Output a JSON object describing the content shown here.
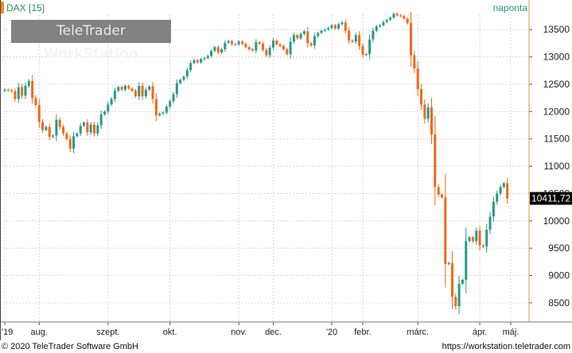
{
  "header": {
    "symbol": "DAX [15]",
    "period": "naponta",
    "watermark_brand": "TeleTrader",
    "watermark_product": "WorkStation"
  },
  "footer": {
    "copyright": "© 2020 TeleTrader Software GmbH",
    "url": "https://workstation.teletrader.com"
  },
  "colors": {
    "up": "#2a9a86",
    "down": "#ee6a1a",
    "grid": "#d8d8d8",
    "axis_text": "#222222",
    "symbol_text": "#2a8a78",
    "last_price_bg": "#000000"
  },
  "chart_data": {
    "type": "candlestick",
    "y_axis": {
      "position": "right",
      "ylim": [
        8150,
        13780
      ],
      "ticks": [
        8500,
        9000,
        9500,
        10000,
        10500,
        11000,
        11500,
        12000,
        12500,
        13000,
        13500
      ]
    },
    "x_axis": {
      "labels": [
        "'19",
        "aug.",
        "szept.",
        "okt.",
        "nov.",
        "dec.",
        "'20",
        "febr.",
        "márc.",
        "ápr.",
        "máj."
      ]
    },
    "last_price": {
      "value": 10411.72,
      "label": "10411,72"
    },
    "grid": true,
    "series": [
      {
        "name": "DAX",
        "points": [
          {
            "label": "'19",
            "value": 12400
          },
          {
            "value": 12390
          },
          {
            "value": 12370
          },
          {
            "value": 12230
          },
          {
            "value": 12450
          },
          {
            "value": 12290
          },
          {
            "value": 12470
          },
          {
            "value": 12560
          },
          {
            "value": 12250
          },
          {
            "value": 12120
          },
          {
            "label": "aug.",
            "value": 11810
          },
          {
            "value": 11660
          },
          {
            "value": 11720
          },
          {
            "value": 11540
          },
          {
            "value": 11560
          },
          {
            "value": 11850
          },
          {
            "value": 11720
          },
          {
            "value": 11600
          },
          {
            "value": 11500
          },
          {
            "value": 11320
          },
          {
            "value": 11550
          },
          {
            "value": 11600
          },
          {
            "value": 11740
          },
          {
            "value": 11800
          },
          {
            "value": 11620
          },
          {
            "value": 11760
          },
          {
            "value": 11600
          },
          {
            "value": 11750
          },
          {
            "value": 11950
          },
          {
            "value": 12000
          },
          {
            "label": "szept.",
            "value": 12130
          },
          {
            "value": 12230
          },
          {
            "value": 12380
          },
          {
            "value": 12450
          },
          {
            "value": 12400
          },
          {
            "value": 12470
          },
          {
            "value": 12420
          },
          {
            "value": 12380
          },
          {
            "value": 12280
          },
          {
            "value": 12470
          },
          {
            "value": 12280
          },
          {
            "value": 12400
          },
          {
            "value": 12460
          },
          {
            "value": 12230
          },
          {
            "value": 11930
          },
          {
            "value": 11960
          },
          {
            "value": 11980
          },
          {
            "value": 12090
          },
          {
            "label": "okt.",
            "value": 12190
          },
          {
            "value": 12320
          },
          {
            "value": 12520
          },
          {
            "value": 12580
          },
          {
            "value": 12640
          },
          {
            "value": 12760
          },
          {
            "value": 12890
          },
          {
            "value": 12940
          },
          {
            "value": 12900
          },
          {
            "value": 12960
          },
          {
            "value": 12980
          },
          {
            "value": 13020
          },
          {
            "value": 13110
          },
          {
            "value": 13180
          },
          {
            "value": 13080
          },
          {
            "value": 13140
          },
          {
            "value": 13260
          },
          {
            "value": 13290
          },
          {
            "value": 13230
          },
          {
            "value": 13230
          },
          {
            "label": "nov.",
            "value": 13280
          },
          {
            "value": 13240
          },
          {
            "value": 13180
          },
          {
            "value": 13140
          },
          {
            "value": 13120
          },
          {
            "value": 13270
          },
          {
            "value": 13240
          },
          {
            "value": 13130
          },
          {
            "value": 13030
          },
          {
            "value": 13170
          },
          {
            "label": "dec.",
            "value": 13300
          },
          {
            "value": 13230
          },
          {
            "value": 13200
          },
          {
            "value": 13140
          },
          {
            "value": 13050
          },
          {
            "value": 13280
          },
          {
            "value": 13400
          },
          {
            "value": 13340
          },
          {
            "value": 13420
          },
          {
            "value": 13470
          },
          {
            "value": 13250
          },
          {
            "value": 13210
          },
          {
            "value": 13380
          },
          {
            "value": 13440
          },
          {
            "value": 13480
          },
          {
            "value": 13500
          },
          {
            "value": 13530
          },
          {
            "label": "'20",
            "value": 13580
          },
          {
            "value": 13520
          },
          {
            "value": 13600
          },
          {
            "value": 13630
          },
          {
            "value": 13480
          },
          {
            "value": 13300
          },
          {
            "value": 13280
          },
          {
            "value": 13400
          },
          {
            "value": 13200
          },
          {
            "label": "febr.",
            "value": 13040
          },
          {
            "value": 13050
          },
          {
            "value": 13320
          },
          {
            "value": 13480
          },
          {
            "value": 13560
          },
          {
            "value": 13580
          },
          {
            "value": 13640
          },
          {
            "value": 13680
          },
          {
            "value": 13720
          },
          {
            "value": 13790
          },
          {
            "value": 13760
          },
          {
            "value": 13750
          },
          {
            "value": 13700
          },
          {
            "value": 13620
          },
          {
            "value": 13030
          },
          {
            "value": 12790
          },
          {
            "label": "márc.",
            "value": 12410
          },
          {
            "value": 12130
          },
          {
            "value": 11870
          },
          {
            "value": 12080
          },
          {
            "value": 11580
          },
          {
            "value": 10620
          },
          {
            "value": 10480
          },
          {
            "value": 10430
          },
          {
            "value": 9210
          },
          {
            "value": 9230
          },
          {
            "value": 8610
          },
          {
            "value": 8440
          },
          {
            "value": 8850
          },
          {
            "value": 8920
          },
          {
            "value": 9630
          },
          {
            "value": 9700
          },
          {
            "value": 9630
          },
          {
            "value": 9820
          },
          {
            "label": "ápr.",
            "value": 9550
          },
          {
            "value": 9530
          },
          {
            "value": 9840
          },
          {
            "value": 10080
          },
          {
            "value": 10350
          },
          {
            "value": 10500
          },
          {
            "value": 10620
          },
          {
            "value": 10690
          },
          {
            "value": 10410
          },
          {
            "label": "máj."
          }
        ]
      }
    ]
  }
}
